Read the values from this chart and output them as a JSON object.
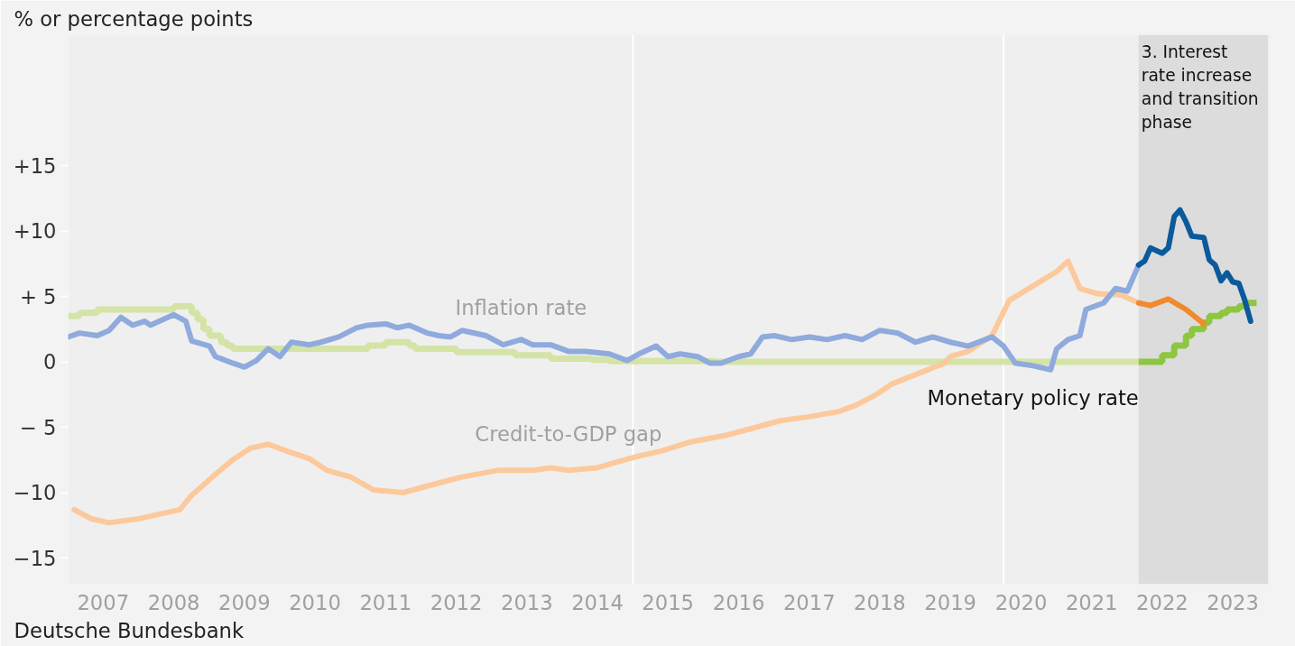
{
  "chart_data": {
    "type": "line",
    "ylabel": "% or percentage points",
    "annotations": [
      "Deutsche Bundesbank"
    ],
    "xlim": [
      "2007-01-01",
      "2024-01-01"
    ],
    "xticks": [
      {
        "value": "2007-07-01",
        "label": "2007"
      },
      {
        "value": "2008-07-01",
        "label": "2008"
      },
      {
        "value": "2009-07-01",
        "label": "2009"
      },
      {
        "value": "2010-07-01",
        "label": "2010"
      },
      {
        "value": "2011-07-01",
        "label": "2011"
      },
      {
        "value": "2012-07-01",
        "label": "2012"
      },
      {
        "value": "2013-07-01",
        "label": "2013"
      },
      {
        "value": "2014-07-01",
        "label": "2014"
      },
      {
        "value": "2015-07-01",
        "label": "2015"
      },
      {
        "value": "2016-07-01",
        "label": "2016"
      },
      {
        "value": "2017-07-01",
        "label": "2017"
      },
      {
        "value": "2018-07-01",
        "label": "2018"
      },
      {
        "value": "2019-07-01",
        "label": "2019"
      },
      {
        "value": "2020-07-01",
        "label": "2020"
      },
      {
        "value": "2021-07-01",
        "label": "2021"
      },
      {
        "value": "2022-07-01",
        "label": "2022"
      },
      {
        "value": "2023-07-01",
        "label": "2023"
      }
    ],
    "ylim": [
      -17,
      25
    ],
    "yticks": [
      {
        "value": -15,
        "label": "−15"
      },
      {
        "value": -10,
        "label": "−10"
      },
      {
        "value": -5,
        "label": "− 5"
      },
      0,
      {
        "value": 5,
        "label": "+ 5"
      },
      {
        "value": 10,
        "label": "+10"
      },
      {
        "value": 15,
        "label": "+15"
      }
    ],
    "grid": false,
    "line_style": "solid",
    "marker": "none",
    "ref_lines": [
      {
        "axis": "x",
        "value": "2015-01-01",
        "label": null,
        "color": "#ffffff"
      },
      {
        "axis": "x",
        "value": "2020-04-01",
        "label": null,
        "color": "#ffffff"
      }
    ],
    "bands": [
      {
        "axis": "x",
        "from": "2022-03-01",
        "to": "2024-01-01",
        "label": "3. Interest rate increase and transition phase",
        "color": "#dcdcdc"
      }
    ],
    "series": [
      {
        "name": "Monetary policy rate",
        "type": "step",
        "color": "#d4e3a6",
        "x": [
          "2007-01",
          "2007-03",
          "2007-06",
          "2008-07",
          "2008-10",
          "2008-11",
          "2008-12",
          "2009-01",
          "2009-03",
          "2009-04",
          "2009-05",
          "2011-04",
          "2011-07",
          "2011-11",
          "2011-12",
          "2012-07",
          "2013-05",
          "2013-11",
          "2014-06",
          "2014-09",
          "2016-03",
          "2022-03"
        ],
        "values": [
          3.5,
          3.75,
          4.0,
          4.25,
          3.75,
          3.25,
          2.5,
          2.0,
          1.5,
          1.25,
          1.0,
          1.25,
          1.5,
          1.25,
          1.0,
          0.75,
          0.5,
          0.25,
          0.15,
          0.05,
          0.0,
          0.0
        ]
      },
      {
        "type": "step",
        "color": "#8dc63f",
        "x": [
          "2022-03",
          "2022-07",
          "2022-09",
          "2022-11",
          "2022-12",
          "2023-02",
          "2023-03",
          "2023-05",
          "2023-06",
          "2023-08",
          "2023-09",
          "2023-11"
        ],
        "values": [
          0.0,
          0.5,
          1.25,
          2.0,
          2.5,
          3.0,
          3.5,
          3.75,
          4.0,
          4.25,
          4.5,
          4.5
        ]
      },
      {
        "name": "Credit-to-GDP gap",
        "color": "#fcc99c",
        "x": [
          "2007-02",
          "2007-05",
          "2007-08",
          "2008-01",
          "2008-03",
          "2008-08",
          "2008-10",
          "2009-02",
          "2009-05",
          "2009-08",
          "2009-11",
          "2010-02",
          "2010-06",
          "2010-09",
          "2011-01",
          "2011-05",
          "2011-10",
          "2012-02",
          "2012-08",
          "2013-02",
          "2013-08",
          "2013-11",
          "2014-02",
          "2014-07",
          "2014-10",
          "2015-02",
          "2015-06",
          "2015-11",
          "2016-05",
          "2016-10",
          "2017-02",
          "2017-07",
          "2017-12",
          "2018-03",
          "2018-06",
          "2018-09",
          "2019-02",
          "2019-06",
          "2019-07",
          "2019-10",
          "2020-02",
          "2020-05",
          "2020-09",
          "2021-01",
          "2021-03",
          "2021-05",
          "2021-08",
          "2021-12",
          "2022-03"
        ],
        "values": [
          -11.3,
          -12.0,
          -12.3,
          -12.0,
          -11.8,
          -11.3,
          -10.2,
          -8.6,
          -7.5,
          -6.6,
          -6.3,
          -6.8,
          -7.4,
          -8.3,
          -8.8,
          -9.8,
          -10.0,
          -9.5,
          -8.8,
          -8.3,
          -8.3,
          -8.1,
          -8.3,
          -8.1,
          -7.7,
          -7.2,
          -6.8,
          -6.1,
          -5.6,
          -5.0,
          -4.5,
          -4.2,
          -3.8,
          -3.3,
          -2.6,
          -1.7,
          -0.8,
          -0.1,
          0.4,
          0.8,
          2.0,
          4.7,
          5.8,
          6.9,
          7.7,
          5.6,
          5.2,
          5.1,
          4.5
        ]
      },
      {
        "color": "#f08a2c",
        "x": [
          "2022-03",
          "2022-05",
          "2022-08",
          "2022-11",
          "2023-02"
        ],
        "values": [
          4.5,
          4.3,
          4.8,
          4.0,
          2.9
        ]
      },
      {
        "name": "Inflation rate",
        "color": "#8faadc",
        "x": [
          "2007-01",
          "2007-03",
          "2007-06",
          "2007-08",
          "2007-10",
          "2007-12",
          "2008-02",
          "2008-03",
          "2008-07",
          "2008-09",
          "2008-10",
          "2009-01",
          "2009-02",
          "2009-05",
          "2009-07",
          "2009-09",
          "2009-11",
          "2010-01",
          "2010-03",
          "2010-06",
          "2010-08",
          "2010-11",
          "2011-02",
          "2011-04",
          "2011-07",
          "2011-09",
          "2011-11",
          "2012-02",
          "2012-04",
          "2012-06",
          "2012-08",
          "2012-12",
          "2013-03",
          "2013-06",
          "2013-08",
          "2013-11",
          "2014-02",
          "2014-05",
          "2014-09",
          "2014-12",
          "2015-02",
          "2015-05",
          "2015-07",
          "2015-09",
          "2015-12",
          "2016-02",
          "2016-04",
          "2016-07",
          "2016-09",
          "2016-11",
          "2017-01",
          "2017-04",
          "2017-07",
          "2017-10",
          "2018-01",
          "2018-04",
          "2018-07",
          "2018-10",
          "2019-01",
          "2019-04",
          "2019-07",
          "2019-10",
          "2020-02",
          "2020-04",
          "2020-06",
          "2020-09",
          "2020-12",
          "2021-01",
          "2021-03",
          "2021-05",
          "2021-06",
          "2021-09",
          "2021-11",
          "2022-01",
          "2022-03"
        ],
        "values": [
          1.9,
          2.2,
          2.0,
          2.4,
          3.4,
          2.8,
          3.1,
          2.8,
          3.6,
          3.1,
          1.6,
          1.2,
          0.4,
          -0.1,
          -0.4,
          0.1,
          1.0,
          0.4,
          1.5,
          1.3,
          1.5,
          1.9,
          2.6,
          2.8,
          2.9,
          2.6,
          2.8,
          2.2,
          2.0,
          1.9,
          2.4,
          2.0,
          1.3,
          1.7,
          1.3,
          1.3,
          0.8,
          0.8,
          0.6,
          0.1,
          0.6,
          1.2,
          0.4,
          0.6,
          0.4,
          -0.1,
          -0.1,
          0.4,
          0.6,
          1.9,
          2.0,
          1.7,
          1.9,
          1.7,
          2.0,
          1.7,
          2.4,
          2.2,
          1.5,
          1.9,
          1.5,
          1.2,
          1.9,
          1.2,
          -0.1,
          -0.3,
          -0.6,
          1.0,
          1.7,
          2.0,
          4.0,
          4.5,
          5.6,
          5.4,
          7.4
        ]
      },
      {
        "color": "#0b5a9c",
        "x": [
          "2022-03",
          "2022-04",
          "2022-05",
          "2022-07",
          "2022-08",
          "2022-09",
          "2022-10",
          "2022-11",
          "2022-12",
          "2023-02",
          "2023-03",
          "2023-04",
          "2023-05",
          "2023-06",
          "2023-07",
          "2023-08",
          "2023-09",
          "2023-10"
        ],
        "values": [
          7.4,
          7.7,
          8.7,
          8.3,
          8.7,
          11.1,
          11.6,
          10.7,
          9.6,
          9.5,
          7.8,
          7.4,
          6.2,
          6.8,
          6.1,
          6.0,
          4.7,
          3.1
        ]
      }
    ]
  }
}
